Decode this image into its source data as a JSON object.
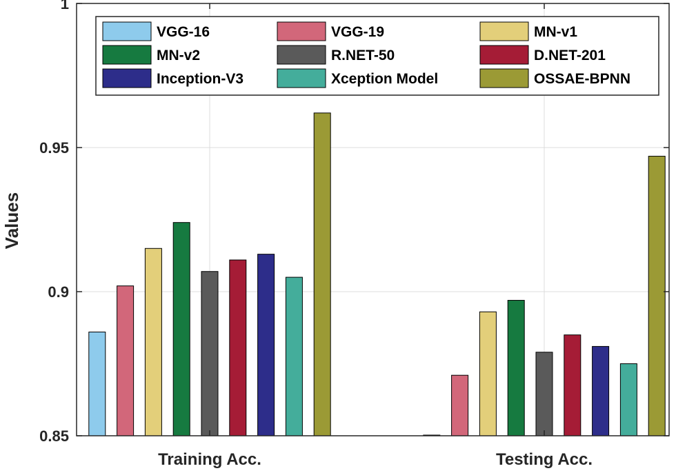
{
  "chart_data": {
    "type": "bar",
    "title": "",
    "xlabel": "",
    "ylabel": "Values",
    "ylim": [
      0.85,
      1.0
    ],
    "yticks": [
      0.85,
      0.9,
      0.95,
      1.0
    ],
    "ytick_labels": [
      "0.85",
      "0.9",
      "0.95",
      "1"
    ],
    "grid": true,
    "legend_position": "top",
    "categories": [
      "Training Acc.",
      "Testing Acc."
    ],
    "series": [
      {
        "name": "VGG-16",
        "color": "#8ecbec",
        "values": [
          0.886,
          0.8495
        ]
      },
      {
        "name": "VGG-19",
        "color": "#d2677a",
        "values": [
          0.902,
          0.871
        ]
      },
      {
        "name": "MN-v1",
        "color": "#e3cf7a",
        "values": [
          0.915,
          0.893
        ]
      },
      {
        "name": "MN-v2",
        "color": "#167a40",
        "values": [
          0.924,
          0.897
        ]
      },
      {
        "name": "R.NET-50",
        "color": "#5a5a5a",
        "values": [
          0.907,
          0.879
        ]
      },
      {
        "name": "D.NET-201",
        "color": "#a51c36",
        "values": [
          0.911,
          0.885
        ]
      },
      {
        "name": "Inception-V3",
        "color": "#2d2d8a",
        "values": [
          0.913,
          0.881
        ]
      },
      {
        "name": "Xception Model",
        "color": "#44ad9b",
        "values": [
          0.905,
          0.875
        ]
      },
      {
        "name": "OSSAE-BPNN",
        "color": "#9b9a35",
        "values": [
          0.962,
          0.947
        ]
      }
    ]
  }
}
